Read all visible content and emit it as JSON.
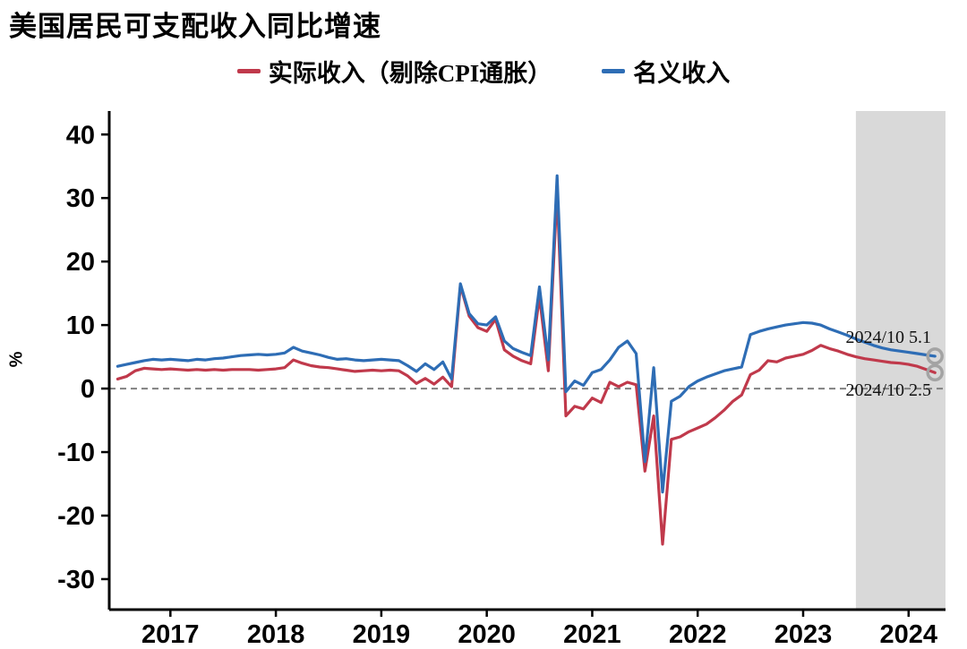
{
  "title": "美国居民可支配收入同比增速",
  "ylabel": "%",
  "legend": [
    {
      "label": "实际收入（剔除CPI通胀）",
      "color": "#c0394b"
    },
    {
      "label": "名义收入",
      "color": "#2e6db5"
    }
  ],
  "annotations": [
    {
      "text": "2024/10 5.1",
      "series": "名义收入"
    },
    {
      "text": "2024/10 2.5",
      "series": "实际收入（剔除CPI通胀）"
    }
  ],
  "chart_data": {
    "type": "line",
    "title": "美国居民可支配收入同比增速",
    "unit": "%",
    "frequency": "monthly",
    "x_start": "2017-01",
    "x_end": "2024-10",
    "x_tick_labels": [
      "2017",
      "2018",
      "2019",
      "2020",
      "2021",
      "2022",
      "2023",
      "2024"
    ],
    "y_ticks": [
      -30,
      -20,
      -10,
      0,
      10,
      20,
      30,
      40
    ],
    "ylim": [
      -34.8,
      43.7
    ],
    "zero_line_dashed": true,
    "highlight_band": {
      "from": "2024-01",
      "from_year": 2024.0,
      "color": "#d9d9d9"
    },
    "axis_color": "#000000",
    "zero_line_color": "#808080",
    "end_marker_color": "#a3a3a3",
    "series": [
      {
        "name": "实际收入（剔除CPI通胀）",
        "color": "#c0394b",
        "latest_point": {
          "date": "2024/10",
          "value": 2.5
        },
        "values": [
          1.5,
          1.9,
          2.8,
          3.2,
          3.1,
          3.0,
          3.1,
          3.0,
          2.9,
          3.0,
          2.9,
          3.0,
          2.9,
          3.0,
          3.0,
          3.0,
          2.9,
          3.0,
          3.1,
          3.3,
          4.5,
          4.0,
          3.6,
          3.4,
          3.3,
          3.1,
          2.9,
          2.7,
          2.8,
          2.9,
          2.8,
          2.9,
          2.8,
          2.0,
          0.8,
          1.6,
          0.7,
          1.8,
          0.3,
          16.2,
          11.4,
          9.6,
          9.0,
          10.9,
          6.1,
          5.1,
          4.4,
          3.9,
          14.5,
          2.8,
          31.0,
          -4.3,
          -2.8,
          -3.2,
          -1.5,
          -2.2,
          1.0,
          0.3,
          1.0,
          0.6,
          -13.0,
          -4.3,
          -24.5,
          -8.0,
          -7.6,
          -6.8,
          -6.2,
          -5.6,
          -4.6,
          -3.4,
          -2.0,
          -1.0,
          2.2,
          2.9,
          4.4,
          4.2,
          4.8,
          5.1,
          5.4,
          6.0,
          6.8,
          6.3,
          5.9,
          5.4,
          5.0,
          4.7,
          4.5,
          4.3,
          4.1,
          4.0,
          3.8,
          3.5,
          3.0,
          2.5
        ]
      },
      {
        "name": "名义收入",
        "color": "#2e6db5",
        "latest_point": {
          "date": "2024/10",
          "value": 5.1
        },
        "values": [
          3.5,
          3.8,
          4.1,
          4.4,
          4.6,
          4.5,
          4.6,
          4.5,
          4.4,
          4.6,
          4.5,
          4.7,
          4.8,
          5.0,
          5.2,
          5.3,
          5.4,
          5.3,
          5.4,
          5.6,
          6.5,
          5.9,
          5.6,
          5.3,
          4.9,
          4.6,
          4.7,
          4.5,
          4.4,
          4.5,
          4.6,
          4.5,
          4.4,
          3.6,
          2.7,
          3.9,
          3.0,
          4.2,
          1.5,
          16.5,
          11.8,
          10.2,
          10.0,
          11.3,
          7.5,
          6.3,
          5.7,
          5.2,
          16.0,
          4.5,
          33.5,
          -0.5,
          1.2,
          0.5,
          2.5,
          3.0,
          4.5,
          6.5,
          7.5,
          5.5,
          -11.5,
          3.3,
          -16.3,
          -2.0,
          -1.2,
          0.3,
          1.2,
          1.8,
          2.3,
          2.8,
          3.1,
          3.4,
          8.5,
          9.0,
          9.4,
          9.7,
          10.0,
          10.2,
          10.4,
          10.3,
          10.0,
          9.4,
          8.9,
          8.4,
          7.8,
          7.3,
          6.8,
          6.4,
          6.1,
          5.9,
          5.7,
          5.5,
          5.3,
          5.1
        ]
      }
    ]
  }
}
